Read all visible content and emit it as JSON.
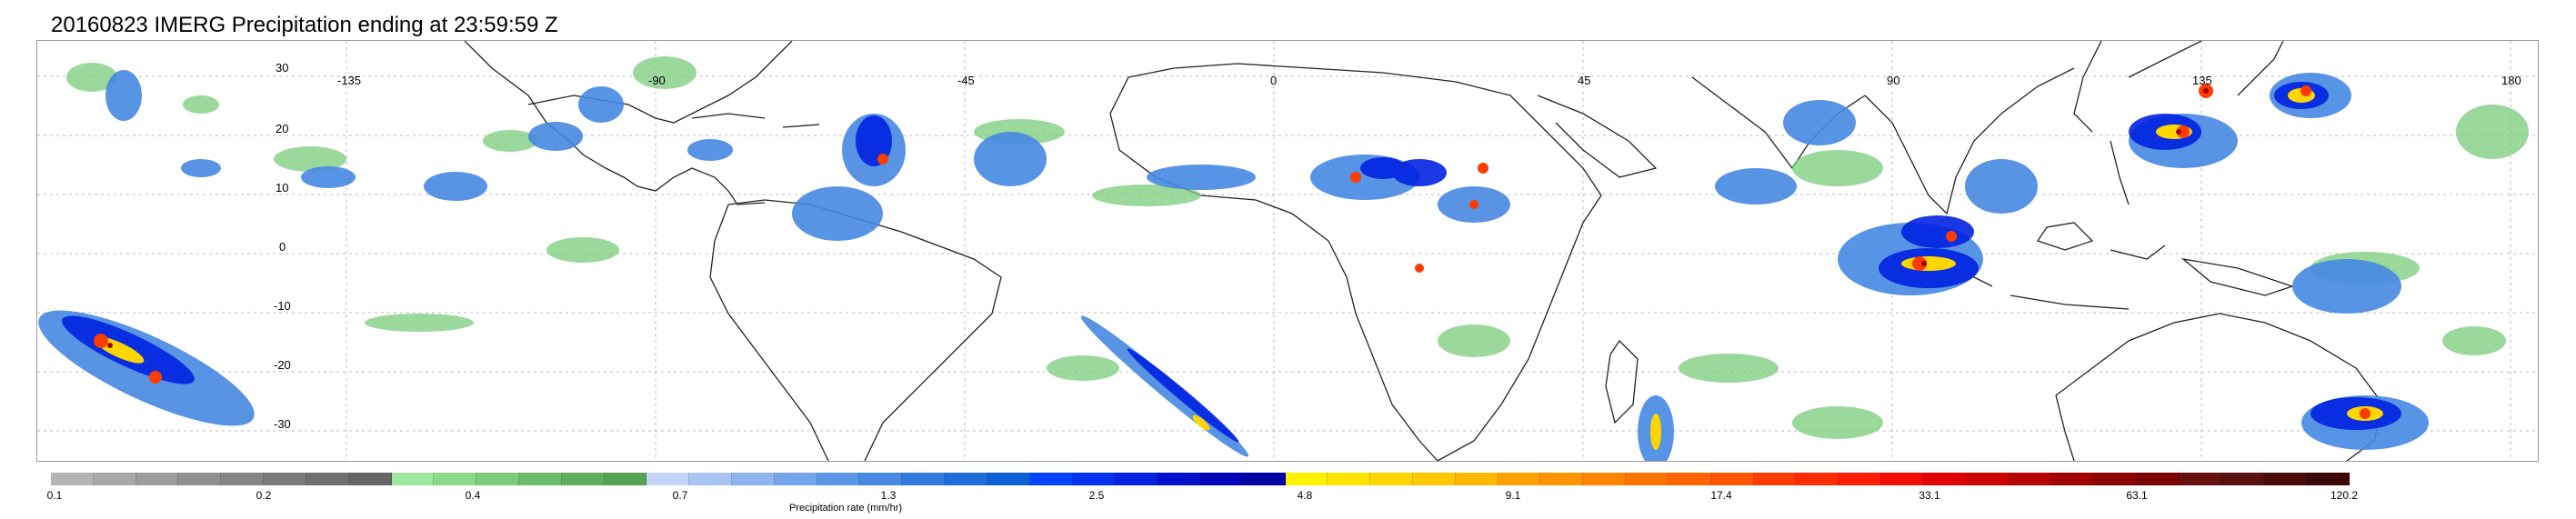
{
  "title": "20160823 IMERG Precipitation ending at 23:59:59 Z",
  "map": {
    "lat_labels": [
      "30",
      "20",
      "10",
      "0",
      "-10",
      "-20",
      "-30"
    ],
    "lon_labels": [
      "-135",
      "-90",
      "-45",
      "0",
      "45",
      "90",
      "135",
      "180"
    ]
  },
  "colorbar": {
    "label": "Precipitation rate (mm/hr)",
    "ticks": [
      "0.1",
      "0.2",
      "0.4",
      "0.7",
      "1.3",
      "2.5",
      "4.8",
      "9.1",
      "17.4",
      "33.1",
      "63.1",
      "120.2"
    ],
    "colors": [
      "#b4b4b4",
      "#a8a8a8",
      "#9c9c9c",
      "#909090",
      "#858585",
      "#7a7a7a",
      "#707070",
      "#656565",
      "#9ee69e",
      "#8ad98a",
      "#7acb7a",
      "#6bbd6b",
      "#5faf5f",
      "#54a354",
      "#c4d4f6",
      "#a8c4f2",
      "#8db4ee",
      "#74a5ea",
      "#5c96e6",
      "#4688e2",
      "#327ade",
      "#1f6dda",
      "#0f60d6",
      "#0044ff",
      "#0033f0",
      "#0022e0",
      "#0011cc",
      "#0000b8",
      "#0000a6",
      "#fff200",
      "#ffe400",
      "#ffd600",
      "#ffc800",
      "#ffba00",
      "#ffa200",
      "#ff9400",
      "#ff8400",
      "#ff7400",
      "#ff6400",
      "#ff5400",
      "#ff3c00",
      "#ff2c00",
      "#ff1c00",
      "#f20c00",
      "#e00000",
      "#cc0000",
      "#b40000",
      "#a00000",
      "#8c0000",
      "#7a0000",
      "#661010",
      "#581010",
      "#4a0a0a",
      "#3c0606"
    ]
  }
}
